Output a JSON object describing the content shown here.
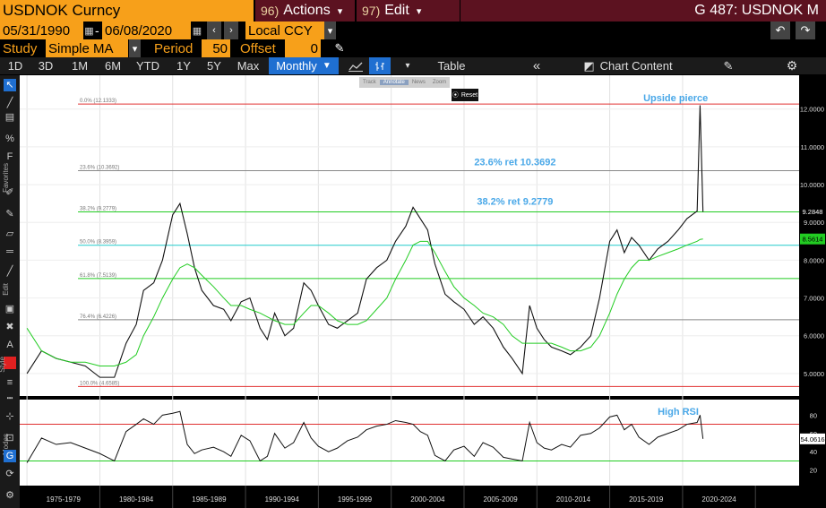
{
  "header": {
    "ticker": "USDNOK Curncy",
    "actions_num": "96)",
    "actions_label": "Actions",
    "edit_num": "97)",
    "edit_label": "Edit",
    "graph_title": "G 487: USDNOK M"
  },
  "dates": {
    "start": "05/31/1990",
    "end": "06/08/2020",
    "currency": "Local CCY"
  },
  "study": {
    "label": "Study",
    "value": "Simple MA",
    "period_label": "Period",
    "period_value": "50",
    "offset_label": "Offset",
    "offset_value": "0"
  },
  "tabs": {
    "ranges": [
      "1D",
      "3D",
      "1M",
      "6M",
      "YTD",
      "1Y",
      "5Y",
      "Max"
    ],
    "frequency": "Monthly",
    "table": "Table",
    "chart_content": "Chart Content"
  },
  "floating": {
    "items": [
      "Track",
      "Annotate",
      "News",
      "Zoom"
    ],
    "reset": "Reset"
  },
  "sidebar": {
    "favorites": "Favorites",
    "edit": "Edit",
    "style": "Style",
    "modes": "Modes"
  },
  "colors": {
    "price": "#ffffff",
    "ma": "#22cc22",
    "fib_red": "#e03030",
    "fib_gray": "#888888",
    "fib_green": "#22cc22",
    "fib_cyan": "#22cccc",
    "annotation": "#4aa8e8",
    "plot_bg": "#ffffff",
    "current_tag": "#000000",
    "ma_tag": "#22cc22"
  },
  "chart_data": [
    {
      "type": "line",
      "title": "",
      "x": [
        1974.0,
        1975.0,
        1976.0,
        1977.0,
        1978.0,
        1979.0,
        1980.0,
        1980.8,
        1981.5,
        1982.0,
        1982.7,
        1983.3,
        1984.0,
        1984.5,
        1985.0,
        1985.5,
        1986.0,
        1986.8,
        1987.5,
        1988.0,
        1988.7,
        1989.3,
        1990.0,
        1990.5,
        1991.0,
        1991.7,
        1992.3,
        1993.0,
        1993.5,
        1994.0,
        1994.7,
        1995.3,
        1996.0,
        1996.7,
        1997.3,
        1998.0,
        1998.7,
        1999.3,
        2000.0,
        2000.5,
        2001.0,
        2001.5,
        2002.0,
        2002.7,
        2003.3,
        2004.0,
        2004.7,
        2005.3,
        2006.0,
        2006.7,
        2007.3,
        2008.0,
        2008.5,
        2009.0,
        2009.5,
        2010.0,
        2010.7,
        2011.3,
        2012.0,
        2012.7,
        2013.3,
        2014.0,
        2014.5,
        2015.0,
        2015.5,
        2016.0,
        2016.7,
        2017.3,
        2018.0,
        2018.7,
        2019.3,
        2020.0,
        2020.2,
        2020.4
      ],
      "series": [
        {
          "values": [
            5.0,
            5.6,
            5.4,
            5.3,
            5.2,
            4.9,
            4.9,
            5.8,
            6.3,
            7.2,
            7.4,
            8.0,
            9.2,
            9.5,
            8.7,
            7.8,
            7.2,
            6.8,
            6.7,
            6.4,
            6.9,
            7.0,
            6.2,
            5.9,
            6.6,
            6.0,
            6.2,
            7.4,
            7.2,
            6.8,
            6.3,
            6.2,
            6.4,
            6.6,
            7.5,
            7.8,
            8.0,
            8.5,
            8.9,
            9.4,
            9.1,
            8.8,
            7.9,
            7.1,
            6.9,
            6.7,
            6.3,
            6.5,
            6.2,
            5.7,
            5.4,
            5.0,
            6.8,
            6.2,
            5.9,
            5.7,
            5.6,
            5.5,
            5.7,
            6.0,
            7.0,
            8.5,
            8.8,
            8.2,
            8.6,
            8.4,
            8.0,
            8.3,
            8.5,
            8.8,
            9.1,
            9.3,
            12.1,
            9.28
          ],
          "last": "9.2848"
        },
        {
          "values": [
            6.2,
            5.6,
            5.4,
            5.3,
            5.3,
            5.2,
            5.2,
            5.3,
            5.5,
            6.0,
            6.5,
            7.0,
            7.5,
            7.8,
            7.9,
            7.8,
            7.6,
            7.3,
            7.0,
            6.8,
            6.8,
            6.7,
            6.6,
            6.5,
            6.4,
            6.3,
            6.3,
            6.6,
            6.8,
            6.8,
            6.6,
            6.4,
            6.3,
            6.3,
            6.4,
            6.7,
            7.0,
            7.5,
            8.0,
            8.4,
            8.5,
            8.5,
            8.2,
            7.7,
            7.3,
            7.0,
            6.8,
            6.6,
            6.5,
            6.3,
            6.0,
            5.8,
            5.8,
            5.8,
            5.8,
            5.8,
            5.7,
            5.6,
            5.6,
            5.7,
            6.0,
            6.6,
            7.1,
            7.5,
            7.8,
            8.0,
            8.0,
            8.1,
            8.2,
            8.3,
            8.4,
            8.5,
            8.55,
            8.5614
          ],
          "last": "8.5614"
        }
      ],
      "fib_levels": [
        {
          "label": "0.0% (12.1333)",
          "value": 12.1333
        },
        {
          "label": "23.6% (10.3692)",
          "value": 10.3692
        },
        {
          "label": "38.2% (9.2779)",
          "value": 9.2779
        },
        {
          "label": "50.0% (8.3959)",
          "value": 8.3959
        },
        {
          "label": "61.8% (7.5139)",
          "value": 7.5139
        },
        {
          "label": "76.4% (6.4226)",
          "value": 6.4226
        },
        {
          "label": "100.0% (4.6585)",
          "value": 4.6585
        }
      ],
      "annotations": [
        "Upside pierce",
        "23.6% ret 10.3692",
        "38.2% ret 9.2779"
      ],
      "y_ticks": [
        "12.0000",
        "11.0000",
        "10.0000",
        "9.0000",
        "8.0000",
        "7.0000",
        "6.0000",
        "5.0000"
      ],
      "ylim": [
        4.5,
        12.8
      ]
    },
    {
      "type": "line",
      "title": "",
      "x": [
        1974.0,
        1975.0,
        1976.0,
        1977.0,
        1978.0,
        1979.0,
        1980.0,
        1980.8,
        1981.5,
        1982.0,
        1982.7,
        1983.3,
        1984.0,
        1984.5,
        1985.0,
        1985.5,
        1986.0,
        1986.8,
        1987.5,
        1988.0,
        1988.7,
        1989.3,
        1990.0,
        1990.5,
        1991.0,
        1991.7,
        1992.3,
        1993.0,
        1993.5,
        1994.0,
        1994.7,
        1995.3,
        1996.0,
        1996.7,
        1997.3,
        1998.0,
        1998.7,
        1999.3,
        2000.0,
        2000.5,
        2001.0,
        2001.5,
        2002.0,
        2002.7,
        2003.3,
        2004.0,
        2004.7,
        2005.3,
        2006.0,
        2006.7,
        2007.3,
        2008.0,
        2008.5,
        2009.0,
        2009.5,
        2010.0,
        2010.7,
        2011.3,
        2012.0,
        2012.7,
        2013.3,
        2014.0,
        2014.5,
        2015.0,
        2015.5,
        2016.0,
        2016.7,
        2017.3,
        2018.0,
        2018.7,
        2019.3,
        2020.0,
        2020.2,
        2020.4
      ],
      "series": [
        {
          "values": [
            28,
            55,
            48,
            50,
            44,
            38,
            30,
            62,
            70,
            76,
            70,
            80,
            82,
            84,
            48,
            38,
            42,
            45,
            40,
            35,
            58,
            52,
            30,
            35,
            60,
            44,
            50,
            72,
            55,
            46,
            40,
            44,
            52,
            56,
            64,
            68,
            70,
            74,
            72,
            70,
            62,
            58,
            36,
            30,
            42,
            46,
            35,
            50,
            45,
            34,
            32,
            30,
            72,
            50,
            44,
            42,
            48,
            45,
            58,
            60,
            66,
            78,
            80,
            64,
            70,
            56,
            48,
            56,
            60,
            64,
            70,
            72,
            80,
            54.06
          ],
          "last": "54.0616"
        }
      ],
      "reference_lines": [
        70,
        30
      ],
      "annotations": [
        "High RSI"
      ],
      "y_ticks": [
        "80",
        "60",
        "40",
        "20"
      ],
      "ylim": [
        5,
        95
      ]
    }
  ],
  "x_axis_labels": [
    "1975-1979",
    "1980-1984",
    "1985-1989",
    "1990-1994",
    "1995-1999",
    "2000-2004",
    "2005-2009",
    "2010-2014",
    "2015-2019",
    "2020-2024"
  ]
}
